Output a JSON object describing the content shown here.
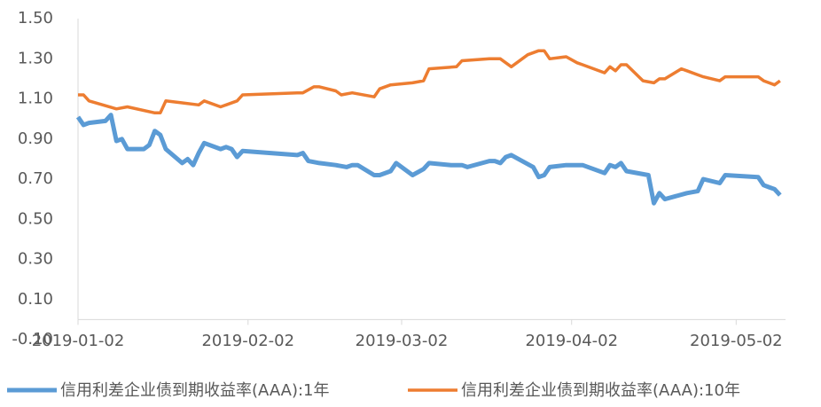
{
  "chart_data": {
    "type": "line",
    "series": [
      {
        "name": "信用利差企业债到期收益率(AAA):1年",
        "color": "#5b9bd5",
        "x": [
          "2019-01-02",
          "2019-01-03",
          "2019-01-04",
          "2019-01-07",
          "2019-01-08",
          "2019-01-09",
          "2019-01-10",
          "2019-01-11",
          "2019-01-14",
          "2019-01-15",
          "2019-01-16",
          "2019-01-17",
          "2019-01-18",
          "2019-01-21",
          "2019-01-22",
          "2019-01-23",
          "2019-01-24",
          "2019-01-25",
          "2019-01-28",
          "2019-01-29",
          "2019-01-30",
          "2019-01-31",
          "2019-02-01",
          "2019-02-11",
          "2019-02-12",
          "2019-02-13",
          "2019-02-15",
          "2019-02-18",
          "2019-02-20",
          "2019-02-21",
          "2019-02-22",
          "2019-02-25",
          "2019-02-26",
          "2019-02-28",
          "2019-03-01",
          "2019-03-04",
          "2019-03-06",
          "2019-03-07",
          "2019-03-11",
          "2019-03-13",
          "2019-03-14",
          "2019-03-18",
          "2019-03-19",
          "2019-03-20",
          "2019-03-21",
          "2019-03-22",
          "2019-03-26",
          "2019-03-27",
          "2019-03-28",
          "2019-03-29",
          "2019-04-01",
          "2019-04-03",
          "2019-04-04",
          "2019-04-08",
          "2019-04-09",
          "2019-04-10",
          "2019-04-11",
          "2019-04-12",
          "2019-04-16",
          "2019-04-17",
          "2019-04-18",
          "2019-04-19",
          "2019-04-23",
          "2019-04-25",
          "2019-04-26",
          "2019-04-29",
          "2019-04-30",
          "2019-05-06",
          "2019-05-07",
          "2019-05-08",
          "2019-05-09",
          "2019-05-10"
        ],
        "values": [
          1.01,
          0.97,
          0.98,
          0.99,
          1.02,
          0.89,
          0.9,
          0.85,
          0.85,
          0.87,
          0.94,
          0.92,
          0.85,
          0.78,
          0.8,
          0.77,
          0.83,
          0.88,
          0.85,
          0.86,
          0.85,
          0.81,
          0.84,
          0.82,
          0.83,
          0.79,
          0.78,
          0.77,
          0.76,
          0.77,
          0.77,
          0.72,
          0.72,
          0.74,
          0.78,
          0.72,
          0.75,
          0.78,
          0.77,
          0.77,
          0.76,
          0.79,
          0.79,
          0.78,
          0.81,
          0.82,
          0.76,
          0.71,
          0.72,
          0.76,
          0.77,
          0.77,
          0.77,
          0.73,
          0.77,
          0.76,
          0.78,
          0.74,
          0.72,
          0.58,
          0.63,
          0.6,
          0.63,
          0.64,
          0.7,
          0.68,
          0.72,
          0.71,
          0.67,
          0.66,
          0.65,
          0.62
        ]
      },
      {
        "name": "信用利差企业债到期收益率(AAA):10年",
        "color": "#ed7d31",
        "x": [
          "2019-01-02",
          "2019-01-03",
          "2019-01-04",
          "2019-01-09",
          "2019-01-11",
          "2019-01-16",
          "2019-01-17",
          "2019-01-18",
          "2019-01-21",
          "2019-01-24",
          "2019-01-25",
          "2019-01-28",
          "2019-01-29",
          "2019-01-31",
          "2019-02-01",
          "2019-02-11",
          "2019-02-12",
          "2019-02-14",
          "2019-02-15",
          "2019-02-18",
          "2019-02-19",
          "2019-02-21",
          "2019-02-25",
          "2019-02-26",
          "2019-02-28",
          "2019-03-04",
          "2019-03-06",
          "2019-03-07",
          "2019-03-12",
          "2019-03-13",
          "2019-03-18",
          "2019-03-20",
          "2019-03-22",
          "2019-03-25",
          "2019-03-27",
          "2019-03-28",
          "2019-03-29",
          "2019-04-01",
          "2019-04-03",
          "2019-04-04",
          "2019-04-08",
          "2019-04-09",
          "2019-04-10",
          "2019-04-11",
          "2019-04-12",
          "2019-04-15",
          "2019-04-17",
          "2019-04-18",
          "2019-04-19",
          "2019-04-22",
          "2019-04-23",
          "2019-04-25",
          "2019-04-26",
          "2019-04-29",
          "2019-04-30",
          "2019-05-06",
          "2019-05-07",
          "2019-05-08",
          "2019-05-09",
          "2019-05-10"
        ],
        "values": [
          1.12,
          1.12,
          1.09,
          1.05,
          1.06,
          1.03,
          1.03,
          1.09,
          1.08,
          1.07,
          1.09,
          1.06,
          1.07,
          1.09,
          1.12,
          1.13,
          1.13,
          1.16,
          1.16,
          1.14,
          1.12,
          1.13,
          1.11,
          1.15,
          1.17,
          1.18,
          1.19,
          1.25,
          1.26,
          1.29,
          1.3,
          1.3,
          1.26,
          1.32,
          1.34,
          1.34,
          1.3,
          1.31,
          1.28,
          1.27,
          1.23,
          1.26,
          1.24,
          1.27,
          1.27,
          1.19,
          1.18,
          1.2,
          1.2,
          1.25,
          1.24,
          1.22,
          1.21,
          1.19,
          1.21,
          1.21,
          1.19,
          1.18,
          1.17,
          1.19
        ]
      }
    ],
    "xlim": [
      "2019-01-02",
      "2019-05-11"
    ],
    "xticks": [
      "2019-01-02",
      "2019-02-02",
      "2019-03-02",
      "2019-04-02",
      "2019-05-02"
    ],
    "ylim": [
      -0.1,
      1.5
    ],
    "yticks": [
      {
        "value": -0.1,
        "label": "-0.10"
      },
      {
        "value": 0.1,
        "label": "0.10"
      },
      {
        "value": 0.3,
        "label": "0.30"
      },
      {
        "value": 0.5,
        "label": "0.50"
      },
      {
        "value": 0.7,
        "label": "0.70"
      },
      {
        "value": 0.9,
        "label": "0.90"
      },
      {
        "value": 1.1,
        "label": "1.10"
      },
      {
        "value": 1.3,
        "label": "1.30"
      },
      {
        "value": 1.5,
        "label": "1.50"
      }
    ],
    "x_axis_crosses": 0,
    "grid": false,
    "legend": "bottom"
  }
}
